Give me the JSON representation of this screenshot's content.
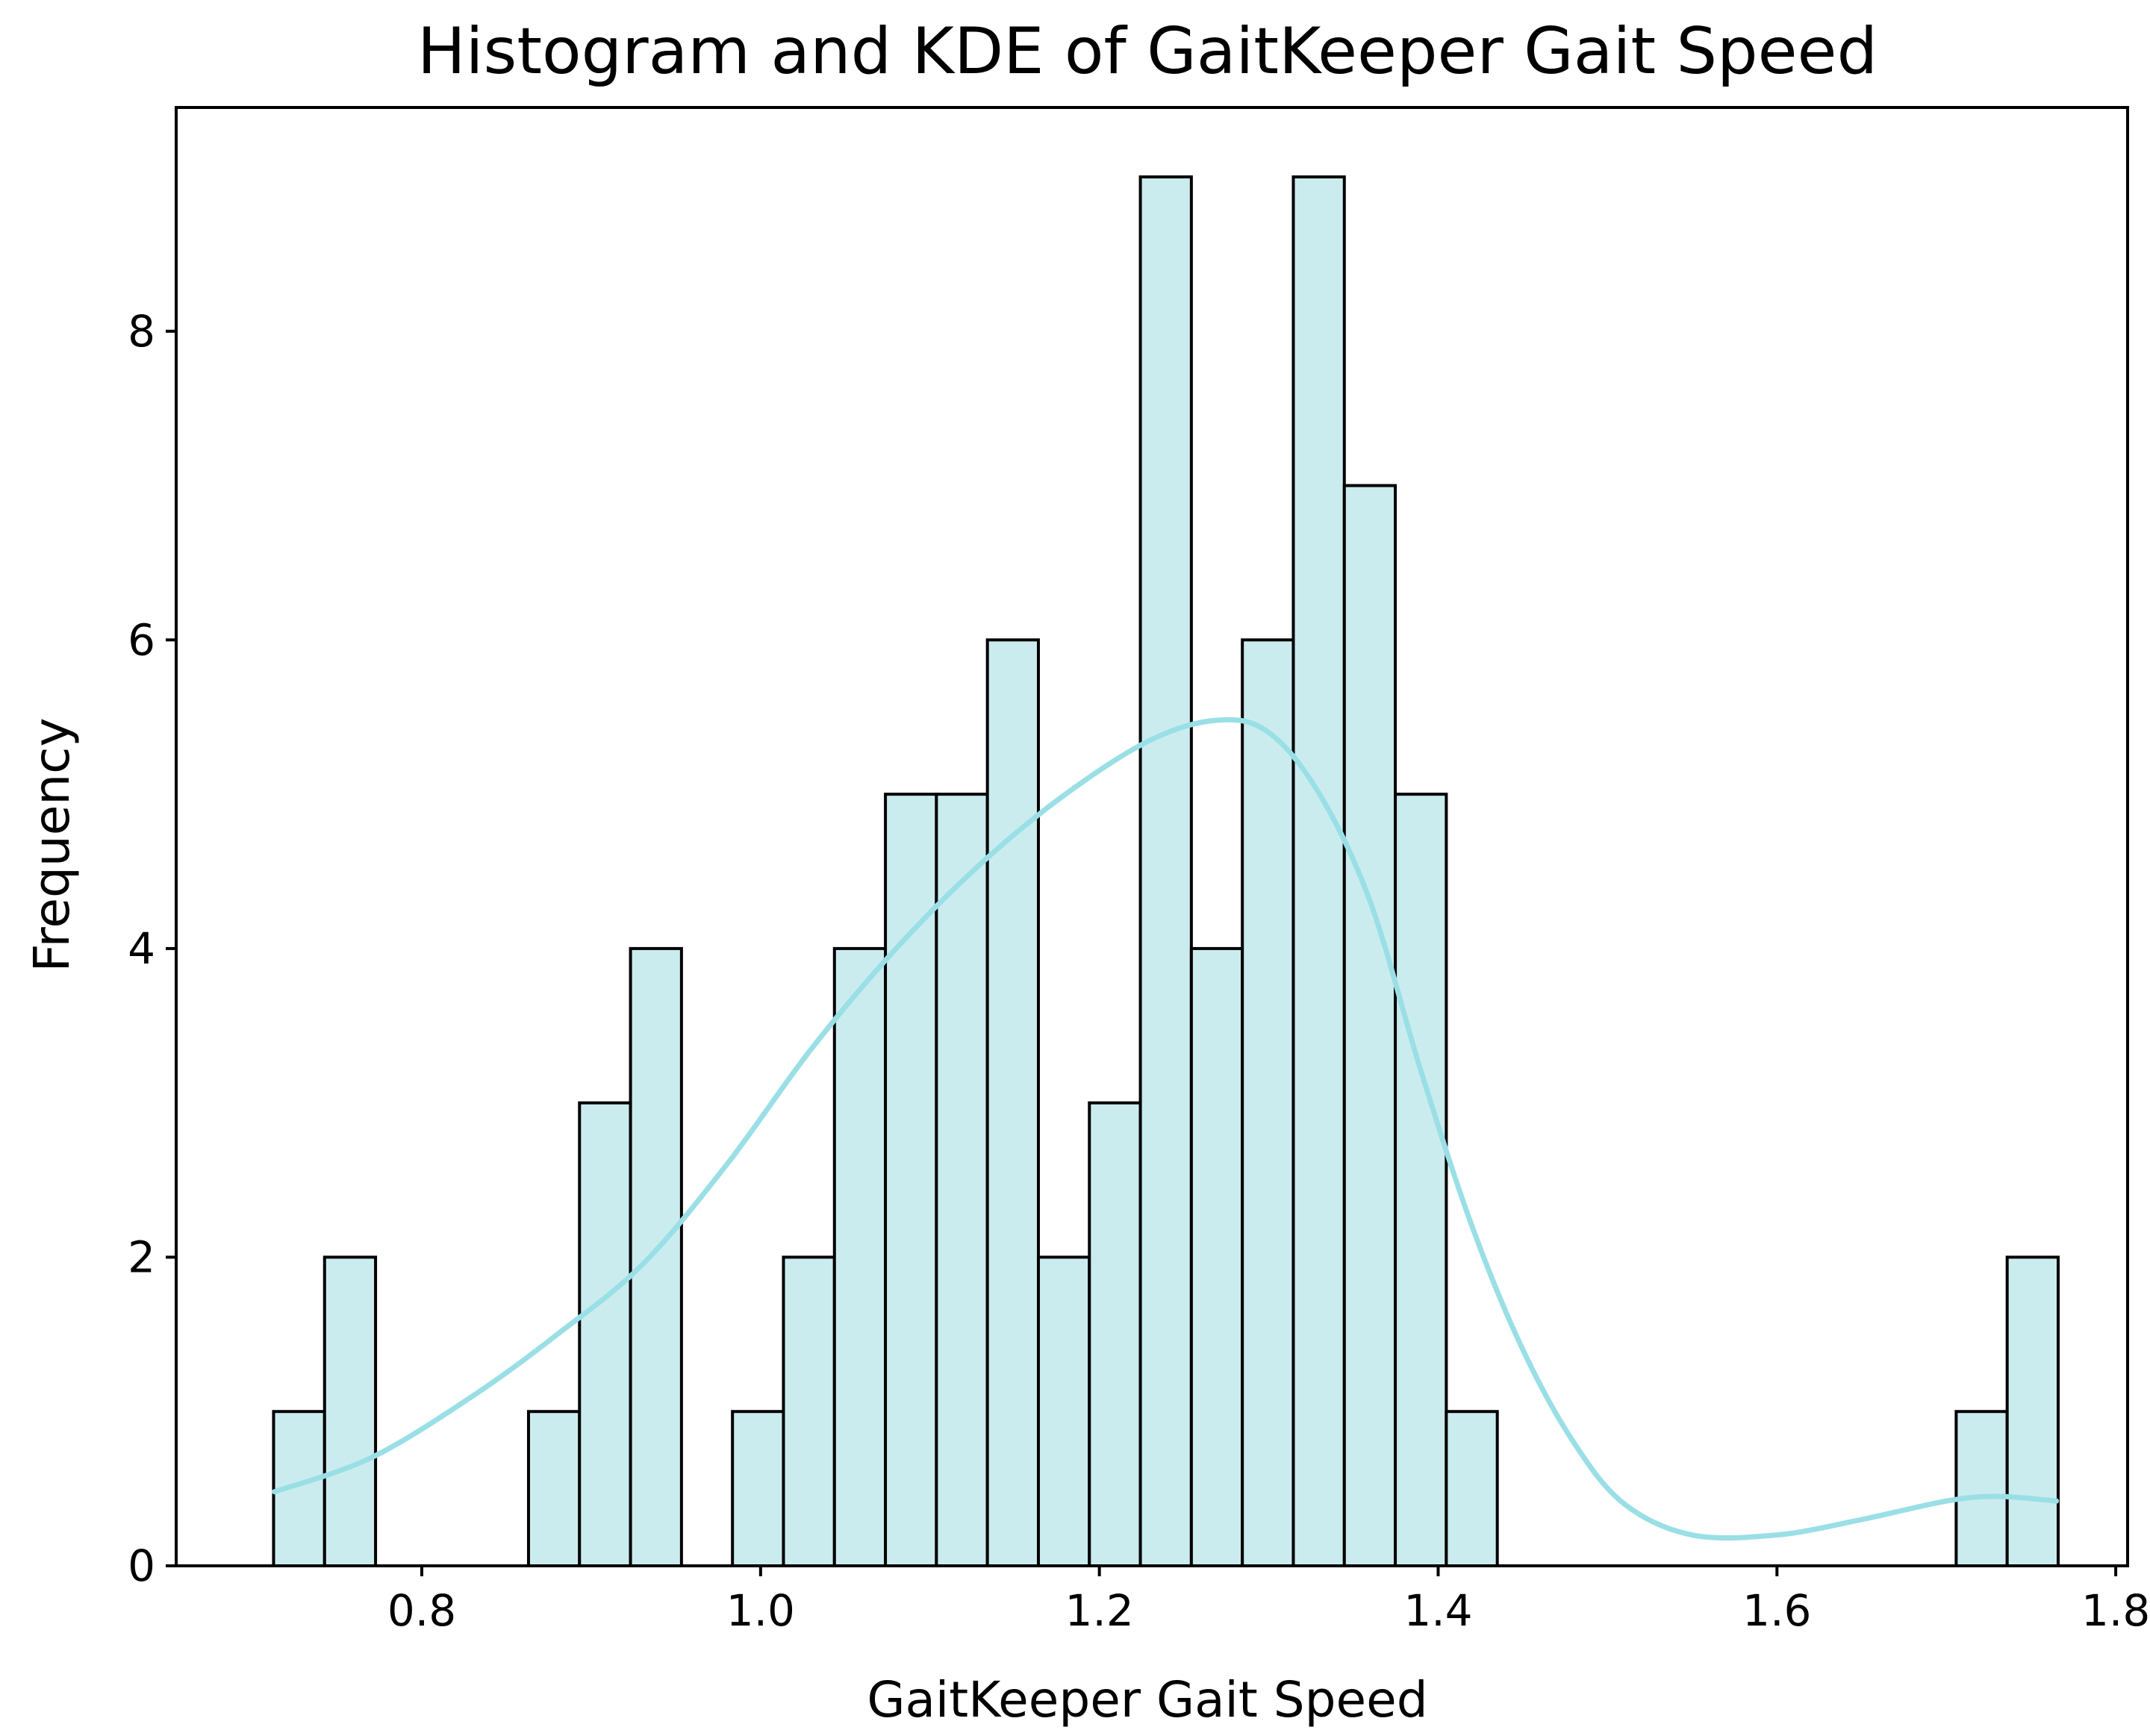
{
  "chart_data": {
    "type": "bar",
    "title": "Histogram and KDE of GaitKeeper Gait Speed",
    "xlabel": "GaitKeeper Gait Speed",
    "ylabel": "Frequency",
    "xlim": [
      0.655,
      1.807
    ],
    "ylim": [
      0,
      9.45
    ],
    "xticks": [
      "0.8",
      "1.0",
      "1.2",
      "1.4",
      "1.6",
      "1.8"
    ],
    "xtick_values": [
      0.8,
      1.0,
      1.2,
      1.4,
      1.6,
      1.8
    ],
    "yticks": [
      "0",
      "2",
      "4",
      "6",
      "8"
    ],
    "ytick_values": [
      0,
      2,
      4,
      6,
      8
    ],
    "grid": false,
    "colors": {
      "bar_fill": "#cbecef",
      "bar_edge": "#000000",
      "kde": "#9adfe6"
    },
    "bins": {
      "start": 0.7125,
      "width": 0.0301,
      "counts": [
        1,
        2,
        0,
        0,
        0,
        1,
        3,
        4,
        0,
        1,
        2,
        4,
        5,
        5,
        6,
        2,
        3,
        9,
        4,
        6,
        9,
        7,
        5,
        1,
        0,
        0,
        0,
        0,
        0,
        0,
        0,
        0,
        0,
        1,
        2
      ]
    },
    "kde": {
      "x": [
        0.713,
        0.77,
        0.83,
        0.88,
        0.93,
        0.98,
        1.03,
        1.08,
        1.13,
        1.18,
        1.23,
        1.27,
        1.3,
        1.33,
        1.36,
        1.39,
        1.42,
        1.45,
        1.48,
        1.51,
        1.55,
        1.6,
        1.65,
        1.7,
        1.73,
        1.765
      ],
      "y": [
        0.48,
        0.7,
        1.1,
        1.5,
        1.95,
        2.6,
        3.35,
        4.0,
        4.55,
        5.0,
        5.35,
        5.48,
        5.4,
        5.0,
        4.3,
        3.2,
        2.2,
        1.4,
        0.8,
        0.4,
        0.2,
        0.2,
        0.3,
        0.42,
        0.45,
        0.42
      ]
    }
  }
}
